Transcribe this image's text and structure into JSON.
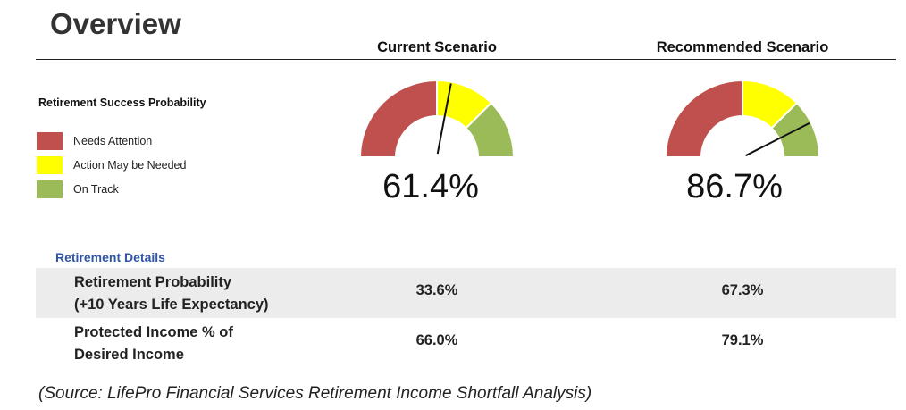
{
  "page": {
    "title": "Overview"
  },
  "scenarios": [
    {
      "heading": "Current Scenario",
      "probability_label": "61.4%",
      "probability": 0.614,
      "needle_fraction": 0.56
    },
    {
      "heading": "Recommended Scenario",
      "probability_label": "86.7%",
      "probability": 0.867,
      "needle_fraction": 0.85
    }
  ],
  "legend": {
    "title": "Retirement Success Probability",
    "items": [
      {
        "label": "Needs Attention",
        "color": "#c0504d"
      },
      {
        "label": "Action May be Needed",
        "color": "#ffff00"
      },
      {
        "label": "On Track",
        "color": "#9bbb59"
      }
    ]
  },
  "details": {
    "label": "Retirement Details",
    "rows": [
      {
        "label_line1": "Retirement Probability",
        "label_line2": "(+10 Years Life Expectancy)",
        "current": "33.6%",
        "recommended": "67.3%"
      },
      {
        "label_line1": "Protected Income % of",
        "label_line2": "Desired Income",
        "current": "66.0%",
        "recommended": "79.1%"
      }
    ]
  },
  "source": "(Source: LifePro Financial Services Retirement Income Shortfall Analysis)"
}
